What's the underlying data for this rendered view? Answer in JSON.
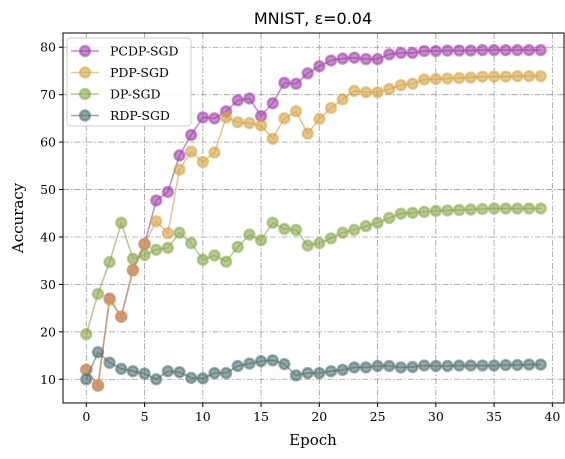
{
  "chart_data": {
    "type": "line",
    "title": "MNIST, ε=0.04",
    "xlabel": "Epoch",
    "ylabel": "Accuracy",
    "xlim": [
      -2,
      41
    ],
    "ylim": [
      5,
      83
    ],
    "xticks": [
      0,
      5,
      10,
      15,
      20,
      25,
      30,
      35,
      40
    ],
    "yticks": [
      10,
      20,
      30,
      40,
      50,
      60,
      70,
      80
    ],
    "grid": true,
    "legend_position": "top-left",
    "x": [
      0,
      1,
      2,
      3,
      4,
      5,
      6,
      7,
      8,
      9,
      10,
      11,
      12,
      13,
      14,
      15,
      16,
      17,
      18,
      19,
      20,
      21,
      22,
      23,
      24,
      25,
      26,
      27,
      28,
      29,
      30,
      31,
      32,
      33,
      34,
      35,
      36,
      37,
      38,
      39
    ],
    "series": [
      {
        "name": "PCDP-SGD",
        "color": "#a040a8",
        "values": [
          12,
          8.7,
          27,
          23.2,
          33,
          38.5,
          47.7,
          49.5,
          57.2,
          61.5,
          65.2,
          65,
          66.5,
          68.8,
          69.2,
          65.5,
          68.2,
          72.5,
          72.3,
          74.5,
          76,
          77.2,
          77.6,
          77.8,
          77.5,
          77.5,
          78.5,
          78.8,
          78.8,
          79.2,
          79.2,
          79.3,
          79.3,
          79.3,
          79.4,
          79.4,
          79.4,
          79.4,
          79.4,
          79.4
        ]
      },
      {
        "name": "PDP-SGD",
        "color": "#d4a447",
        "values": [
          12,
          8.7,
          26.8,
          23.2,
          33,
          38.5,
          43.3,
          40.8,
          54.2,
          58,
          55.8,
          57.8,
          65.2,
          64.2,
          64,
          63.5,
          60.7,
          65,
          66.5,
          61.8,
          64.9,
          67.2,
          69,
          70.8,
          70.5,
          70.5,
          71.2,
          72,
          72.3,
          73.2,
          73.3,
          73.4,
          73.5,
          73.6,
          73.8,
          73.8,
          73.8,
          73.9,
          73.9,
          73.9
        ]
      },
      {
        "name": "DP-SGD",
        "color": "#8aa64f",
        "values": [
          19.5,
          28,
          34.7,
          43,
          35.4,
          36.2,
          37.3,
          37.7,
          40.9,
          38.7,
          35.2,
          36.1,
          34.8,
          37.9,
          40.5,
          39.3,
          43,
          41.7,
          41.5,
          38.2,
          38.7,
          39.7,
          40.9,
          41.5,
          42.3,
          43,
          44,
          44.9,
          45.1,
          45.3,
          45.5,
          45.6,
          45.7,
          45.8,
          45.9,
          46,
          46,
          46,
          46,
          46
        ]
      },
      {
        "name": "RDP-SGD",
        "color": "#4e6e6e",
        "values": [
          10,
          15.7,
          13.5,
          12.2,
          11.7,
          11.2,
          10,
          11.7,
          11.5,
          10.3,
          10.2,
          11.3,
          11.3,
          12.8,
          13.3,
          13.8,
          14,
          13.2,
          10.8,
          11.3,
          11.3,
          11.7,
          12,
          12.5,
          12.5,
          12.8,
          12.8,
          12.5,
          12.6,
          12.9,
          12.8,
          12.8,
          12.9,
          12.9,
          12.9,
          12.9,
          13,
          13,
          13.1,
          13.1
        ]
      }
    ]
  }
}
